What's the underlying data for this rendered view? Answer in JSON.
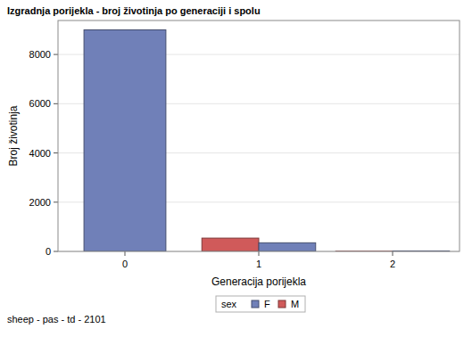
{
  "chart_data": {
    "type": "bar",
    "title": "Izgradnja porijekla - broj životinja po generaciji i spolu",
    "x_label": "Generacija porijekla",
    "y_label": "Broj životinja",
    "legend_title": "sex",
    "footnote": "sheep - pas - td - 2101",
    "categories": [
      "0",
      "1",
      "2"
    ],
    "series": [
      {
        "name": "F",
        "color": "#7080b8",
        "values": [
          9000,
          350,
          20
        ]
      },
      {
        "name": "M",
        "color": "#d05a5a",
        "values": [
          null,
          540,
          8
        ]
      }
    ],
    "ylim": [
      0,
      9380
    ],
    "yticks": [
      0,
      2000,
      4000,
      6000,
      8000
    ],
    "grid": true,
    "legend": "bottom"
  }
}
